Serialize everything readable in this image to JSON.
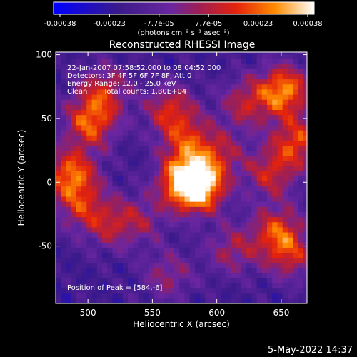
{
  "chart_data": {
    "type": "heatmap",
    "title": "Reconstructed RHESSI Image",
    "xlabel": "Heliocentric X (arcsec)",
    "ylabel": "Heliocentric Y (arcsec)",
    "xlim": [
      475,
      670
    ],
    "ylim": [
      -95,
      102
    ],
    "x_ticks": [
      500,
      550,
      600,
      650
    ],
    "y_ticks": [
      100,
      50,
      0,
      -50
    ],
    "colorbar": {
      "ticks": [
        "-0.00038",
        "-0.00023",
        "-7.7e-05",
        "7.7e-05",
        "0.00023",
        "0.00038"
      ],
      "range": [
        -0.00038,
        0.00038
      ],
      "unit_label": "(photons cm⁻² s⁻¹ asec⁻²)"
    },
    "annotations": [
      "22-Jan-2007 07:58:52.000 to 08:04:52.000",
      "Detectors: 3F 4F 5F 6F 7F 8F, Att 0",
      "Energy Range: 12.0 - 25.0 keV",
      "Clean",
      "Total counts: 1.80E+04"
    ],
    "peak_label": "Position of Peak = [584,-6]",
    "peak": [
      584,
      -6
    ],
    "sources": [
      {
        "x": 584,
        "y": -6,
        "amp": 1.0
      },
      {
        "x": 572,
        "y": 0,
        "amp": 0.8
      },
      {
        "x": 562,
        "y": 55,
        "amp": 0.6
      },
      {
        "x": 575,
        "y": 30,
        "amp": 0.55
      },
      {
        "x": 500,
        "y": 45,
        "amp": 0.75
      },
      {
        "x": 510,
        "y": 70,
        "amp": 0.55
      },
      {
        "x": 485,
        "y": 5,
        "amp": 0.8
      },
      {
        "x": 492,
        "y": -20,
        "amp": 0.5
      },
      {
        "x": 515,
        "y": -35,
        "amp": 0.45
      },
      {
        "x": 650,
        "y": 70,
        "amp": 0.9
      },
      {
        "x": 660,
        "y": 30,
        "amp": 0.7
      },
      {
        "x": 640,
        "y": 5,
        "amp": 0.55
      },
      {
        "x": 620,
        "y": 60,
        "amp": 0.5
      },
      {
        "x": 645,
        "y": -40,
        "amp": 0.65
      },
      {
        "x": 655,
        "y": -60,
        "amp": 0.5
      },
      {
        "x": 610,
        "y": -55,
        "amp": 0.45
      },
      {
        "x": 560,
        "y": -75,
        "amp": 0.4
      },
      {
        "x": 540,
        "y": -30,
        "amp": 0.35
      },
      {
        "x": 600,
        "y": 20,
        "amp": 0.45
      }
    ]
  },
  "footer": {
    "date": "5-May-2022 14:37"
  }
}
